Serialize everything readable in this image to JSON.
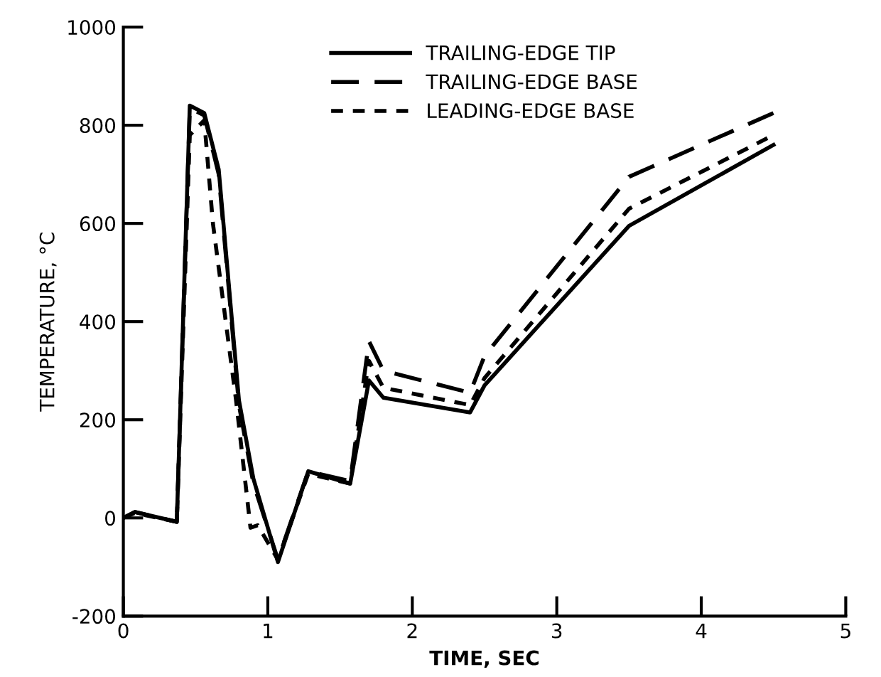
{
  "chart_data": {
    "type": "line",
    "xlabel": "TIME, SEC",
    "ylabel": "TEMPERATURE, °C",
    "xlim": [
      0,
      5
    ],
    "ylim": [
      -200,
      1000
    ],
    "xticks": [
      0,
      1,
      2,
      3,
      4,
      5
    ],
    "yticks": [
      -200,
      0,
      200,
      400,
      600,
      800,
      1000
    ],
    "grid": false,
    "legend": "top",
    "marker": "none",
    "series": [
      {
        "name": "TRAILING-EDGE TIP",
        "color": "#000000",
        "line_style": "solid",
        "x": [
          0,
          0.08,
          0.37,
          0.46,
          0.56,
          0.66,
          0.8,
          0.9,
          1.07,
          1.28,
          1.57,
          1.7,
          1.8,
          2.4,
          2.5,
          3.5,
          4.5
        ],
        "values": [
          0,
          12,
          -8,
          840,
          825,
          710,
          240,
          80,
          -90,
          95,
          70,
          280,
          245,
          215,
          270,
          595,
          760
        ]
      },
      {
        "name": "TRAILING-EDGE BASE",
        "color": "#000000",
        "line_style": "dashed",
        "x": [
          0,
          0.08,
          0.37,
          0.46,
          0.56,
          0.66,
          0.8,
          0.9,
          1.07,
          1.28,
          1.57,
          1.7,
          1.8,
          2.4,
          2.5,
          3.5,
          4.5
        ],
        "values": [
          0,
          12,
          -8,
          835,
          820,
          700,
          230,
          70,
          -85,
          95,
          75,
          360,
          300,
          255,
          330,
          695,
          825
        ]
      },
      {
        "name": "LEADING-EDGE BASE",
        "color": "#000000",
        "line_style": "dotted",
        "x": [
          0,
          0.08,
          0.37,
          0.46,
          0.56,
          0.62,
          0.78,
          0.88,
          0.93,
          1.07,
          1.28,
          1.57,
          1.7,
          1.8,
          2.4,
          2.5,
          3.5,
          4.5
        ],
        "values": [
          0,
          10,
          -8,
          780,
          810,
          600,
          240,
          -20,
          -15,
          -85,
          90,
          70,
          320,
          265,
          230,
          285,
          630,
          780
        ]
      }
    ]
  }
}
